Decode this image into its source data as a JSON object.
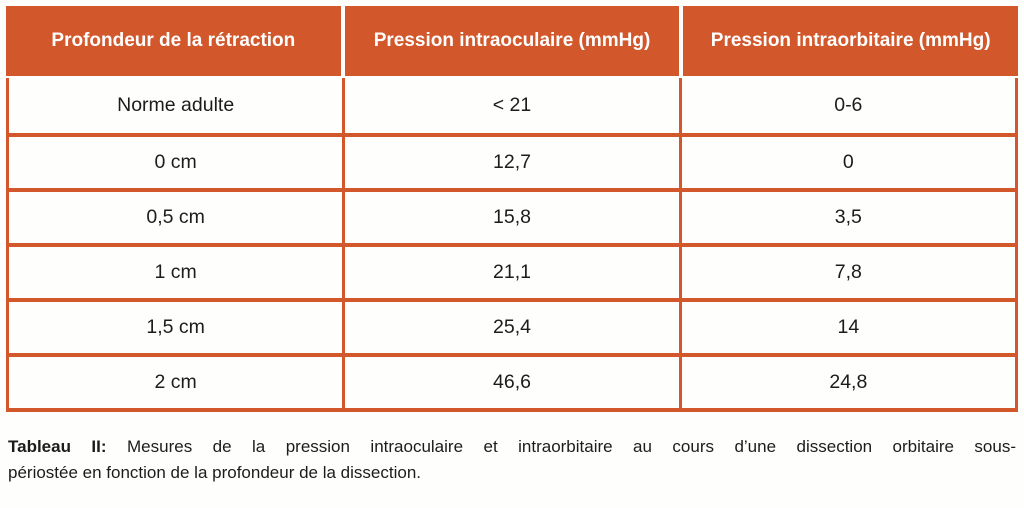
{
  "chart_data": {
    "type": "table",
    "title": "Tableau II",
    "columns": [
      "Profondeur de la rétraction",
      "Pression intraoculaire (mmHg)",
      "Pression intraorbitaire (mmHg)"
    ],
    "rows": [
      [
        "Norme adulte",
        "< 21",
        "0-6"
      ],
      [
        "0 cm",
        "12,7",
        "0"
      ],
      [
        "0,5 cm",
        "15,8",
        "3,5"
      ],
      [
        "1 cm",
        "21,1",
        "7,8"
      ],
      [
        "1,5 cm",
        "25,4",
        "14"
      ],
      [
        "2 cm",
        "46,6",
        "24,8"
      ]
    ],
    "caption": "Tableau II: Mesures de la pression intraoculaire et intraorbitaire au cours d'une dissection orbitaire sous-périostée en fonction de la profondeur de la dissection.",
    "units": "mmHg",
    "layout": {
      "header_position": "top",
      "grid": "on"
    }
  },
  "caption": {
    "label": "Tableau II:",
    "line1_rest": "Mesures de la pression intraoculaire et intraorbitaire au cours d’une dissection orbitaire sous-",
    "line2": "périostée en fonction de la profondeur de la dissection."
  },
  "colors": {
    "accent_orange": "#D2572B",
    "header_text": "#FFFFFF",
    "body_text": "#1C1C1A",
    "background": "#FEFEFD"
  }
}
